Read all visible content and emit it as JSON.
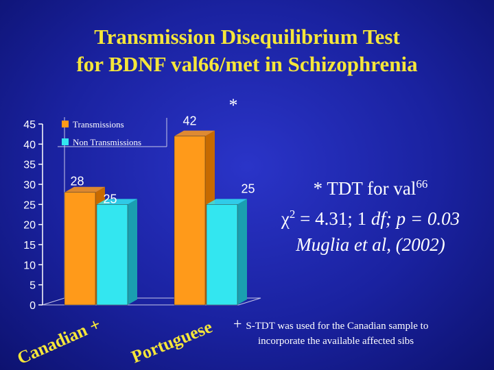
{
  "title": {
    "line1": "Transmission Disequilibrium Test",
    "line2": "for BDNF val66/met in Schizophrenia"
  },
  "chart_data": {
    "type": "bar",
    "categories": [
      "Canadian +",
      "Portuguese"
    ],
    "series": [
      {
        "name": "Transmissions",
        "values": [
          28,
          42
        ],
        "color": "#ff9a1a"
      },
      {
        "name": "Non Transmissions",
        "values": [
          25,
          25
        ],
        "color": "#33e6f0"
      }
    ],
    "ylim": [
      0,
      45
    ],
    "yticks": [
      0,
      5,
      10,
      15,
      20,
      25,
      30,
      35,
      40,
      45
    ],
    "legend_position": "top-left",
    "annotation": "*"
  },
  "stat": {
    "line1_prefix": "* TDT for val",
    "line1_sup": "66",
    "chi": "χ",
    "chi_sup": "2",
    "eq": " = 4.31; 1 ",
    "df": "df; p = 0.03",
    "cite": "Muglia et al, (2002)"
  },
  "footnote": {
    "plus": "+",
    "line1": "S-TDT was used for the Canadian sample to",
    "line2": "incorporate the available affected sibs"
  },
  "colors": {
    "background": "#1a22a0",
    "title": "#f5e63a",
    "transmissions": "#ff9a1a",
    "non_transmissions": "#33e6f0"
  }
}
